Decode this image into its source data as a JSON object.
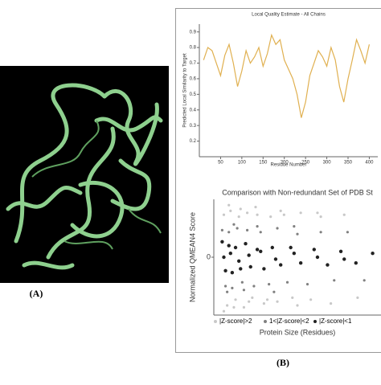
{
  "labels": [
    "(A)",
    "(B)"
  ],
  "chart_data": [
    {
      "type": "line",
      "title": "Local Quality Estimate - All Chains",
      "y_label": "Predicted Local Similarity to Target",
      "x_label": "Residue Number",
      "x": [
        10,
        20,
        30,
        40,
        50,
        60,
        70,
        80,
        90,
        100,
        110,
        120,
        130,
        140,
        150,
        160,
        170,
        180,
        190,
        200,
        210,
        220,
        230,
        240,
        250,
        260,
        270,
        280,
        290,
        300,
        310,
        320,
        330,
        340,
        350,
        360,
        370,
        380,
        390,
        400
      ],
      "values": [
        0.72,
        0.8,
        0.78,
        0.7,
        0.62,
        0.75,
        0.82,
        0.7,
        0.55,
        0.65,
        0.78,
        0.7,
        0.74,
        0.8,
        0.68,
        0.76,
        0.88,
        0.82,
        0.85,
        0.72,
        0.66,
        0.6,
        0.5,
        0.35,
        0.45,
        0.62,
        0.7,
        0.78,
        0.74,
        0.68,
        0.8,
        0.72,
        0.55,
        0.45,
        0.6,
        0.72,
        0.85,
        0.78,
        0.7,
        0.82
      ],
      "color": "#e0b050",
      "xlim": [
        0,
        420
      ],
      "xticks": [
        50,
        100,
        150,
        200,
        250,
        300,
        350,
        400
      ],
      "ylim": [
        0.1,
        0.95
      ],
      "yticks": [
        0.2,
        0.3,
        0.4,
        0.5,
        0.6,
        0.7,
        0.8,
        0.9
      ]
    },
    {
      "type": "scatter",
      "title": "Comparison with Non-redundant Set of PDB St",
      "y_label": "Normalized QMEAN4 Score",
      "x_label": "Protein Size (Residues)",
      "xlim": [
        0,
        1000
      ],
      "ylim": [
        -3,
        3
      ],
      "yticks": [
        0
      ],
      "series": [
        {
          "name": "|Z-score|>2",
          "color": "#c8c8c8",
          "x": [
            60,
            80,
            100,
            130,
            150,
            180,
            200,
            230,
            260,
            300,
            340,
            380,
            420,
            470,
            520,
            580,
            640,
            700,
            780,
            860,
            60,
            90,
            120,
            160,
            210,
            250,
            320,
            400,
            500,
            620
          ],
          "values": [
            2.2,
            -2.5,
            2.4,
            -2.2,
            2.1,
            -2.6,
            2.3,
            -2.1,
            2.2,
            -2.4,
            2.1,
            -2.3,
            2.2,
            -2.1,
            2.3,
            -2.2,
            2.1,
            -2.4,
            2.2,
            -2.1,
            -2.8,
            2.7,
            -2.6,
            2.5,
            -2.3,
            2.6,
            -2.2,
            2.4,
            -2.5,
            2.3
          ]
        },
        {
          "name": "1<|Z-score|<2",
          "color": "#808080",
          "x": [
            50,
            70,
            90,
            110,
            140,
            170,
            200,
            240,
            280,
            330,
            380,
            440,
            500,
            560,
            640,
            720,
            800,
            900,
            80,
            120,
            180,
            260,
            360,
            480
          ],
          "values": [
            1.4,
            -1.5,
            1.3,
            -1.6,
            1.5,
            -1.3,
            1.4,
            -1.5,
            1.3,
            -1.4,
            1.5,
            -1.3,
            1.2,
            -1.4,
            1.3,
            -1.2,
            1.3,
            -1.2,
            -1.8,
            1.7,
            -1.7,
            1.6,
            -1.8,
            1.6
          ]
        },
        {
          "name": "|Z-score|<1",
          "color": "#222222",
          "x": [
            50,
            70,
            90,
            110,
            130,
            160,
            190,
            220,
            260,
            300,
            350,
            400,
            460,
            520,
            600,
            680,
            760,
            850,
            950,
            60,
            100,
            150,
            210,
            280,
            370,
            480,
            620,
            780
          ],
          "values": [
            0.8,
            -0.7,
            0.6,
            -0.8,
            0.5,
            -0.6,
            0.7,
            -0.5,
            0.4,
            -0.6,
            0.5,
            -0.4,
            0.5,
            -0.3,
            0.4,
            -0.4,
            0.3,
            -0.3,
            0.2,
            0,
            0.2,
            -0.2,
            0.1,
            0.3,
            -0.1,
            0.2,
            0,
            -0.1
          ]
        }
      ]
    }
  ]
}
